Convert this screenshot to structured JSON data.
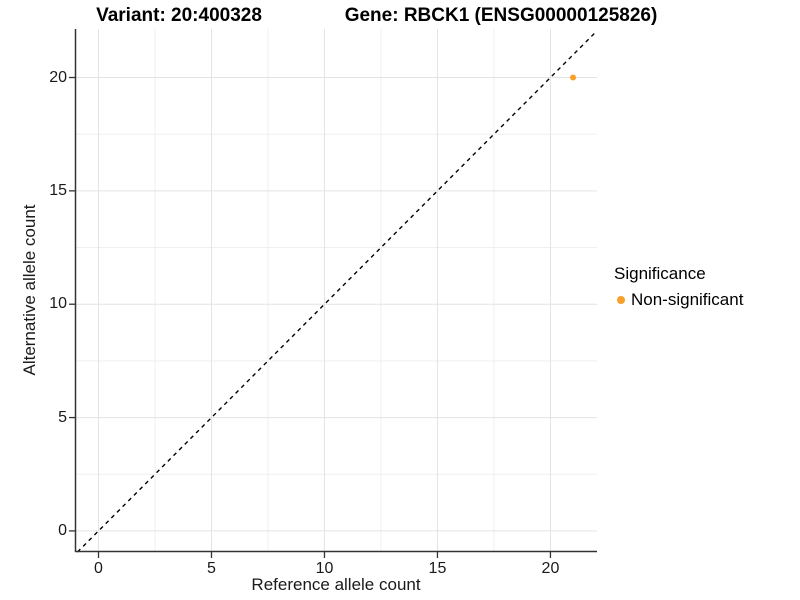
{
  "chart_data": {
    "type": "scatter",
    "title_left": "Variant: 20:400328",
    "title_right": "Gene: RBCK1 (ENSG00000125826)",
    "xlabel": "Reference allele count",
    "ylabel": "Alternative allele count",
    "xlim": [
      -1.04,
      22.06
    ],
    "ylim": [
      -0.93,
      22.14
    ],
    "x_ticks": [
      0,
      5,
      10,
      15,
      20
    ],
    "y_ticks": [
      0,
      5,
      10,
      15,
      20
    ],
    "x_minor_ticks": [
      2.5,
      7.5,
      12.5,
      17.5
    ],
    "y_minor_ticks": [
      2.5,
      7.5,
      12.5,
      17.5
    ],
    "grid": true,
    "legend_position": "right",
    "reference_line": {
      "kind": "identity",
      "style": "dashed",
      "color": "#000000"
    },
    "series": [
      {
        "name": "Non-significant",
        "color": "#F9A02B",
        "points": [
          {
            "x": 21,
            "y": 20
          }
        ]
      }
    ],
    "legend": {
      "title": "Significance",
      "items": [
        {
          "label": "Non-significant",
          "color": "#F9A02B"
        }
      ]
    },
    "colors": {
      "axis_line": "#333333",
      "tick_mark": "#333333",
      "grid_major": "#e3e3e3",
      "grid_minor": "#efefef",
      "point": "#F9A02B",
      "background": "#ffffff"
    }
  }
}
